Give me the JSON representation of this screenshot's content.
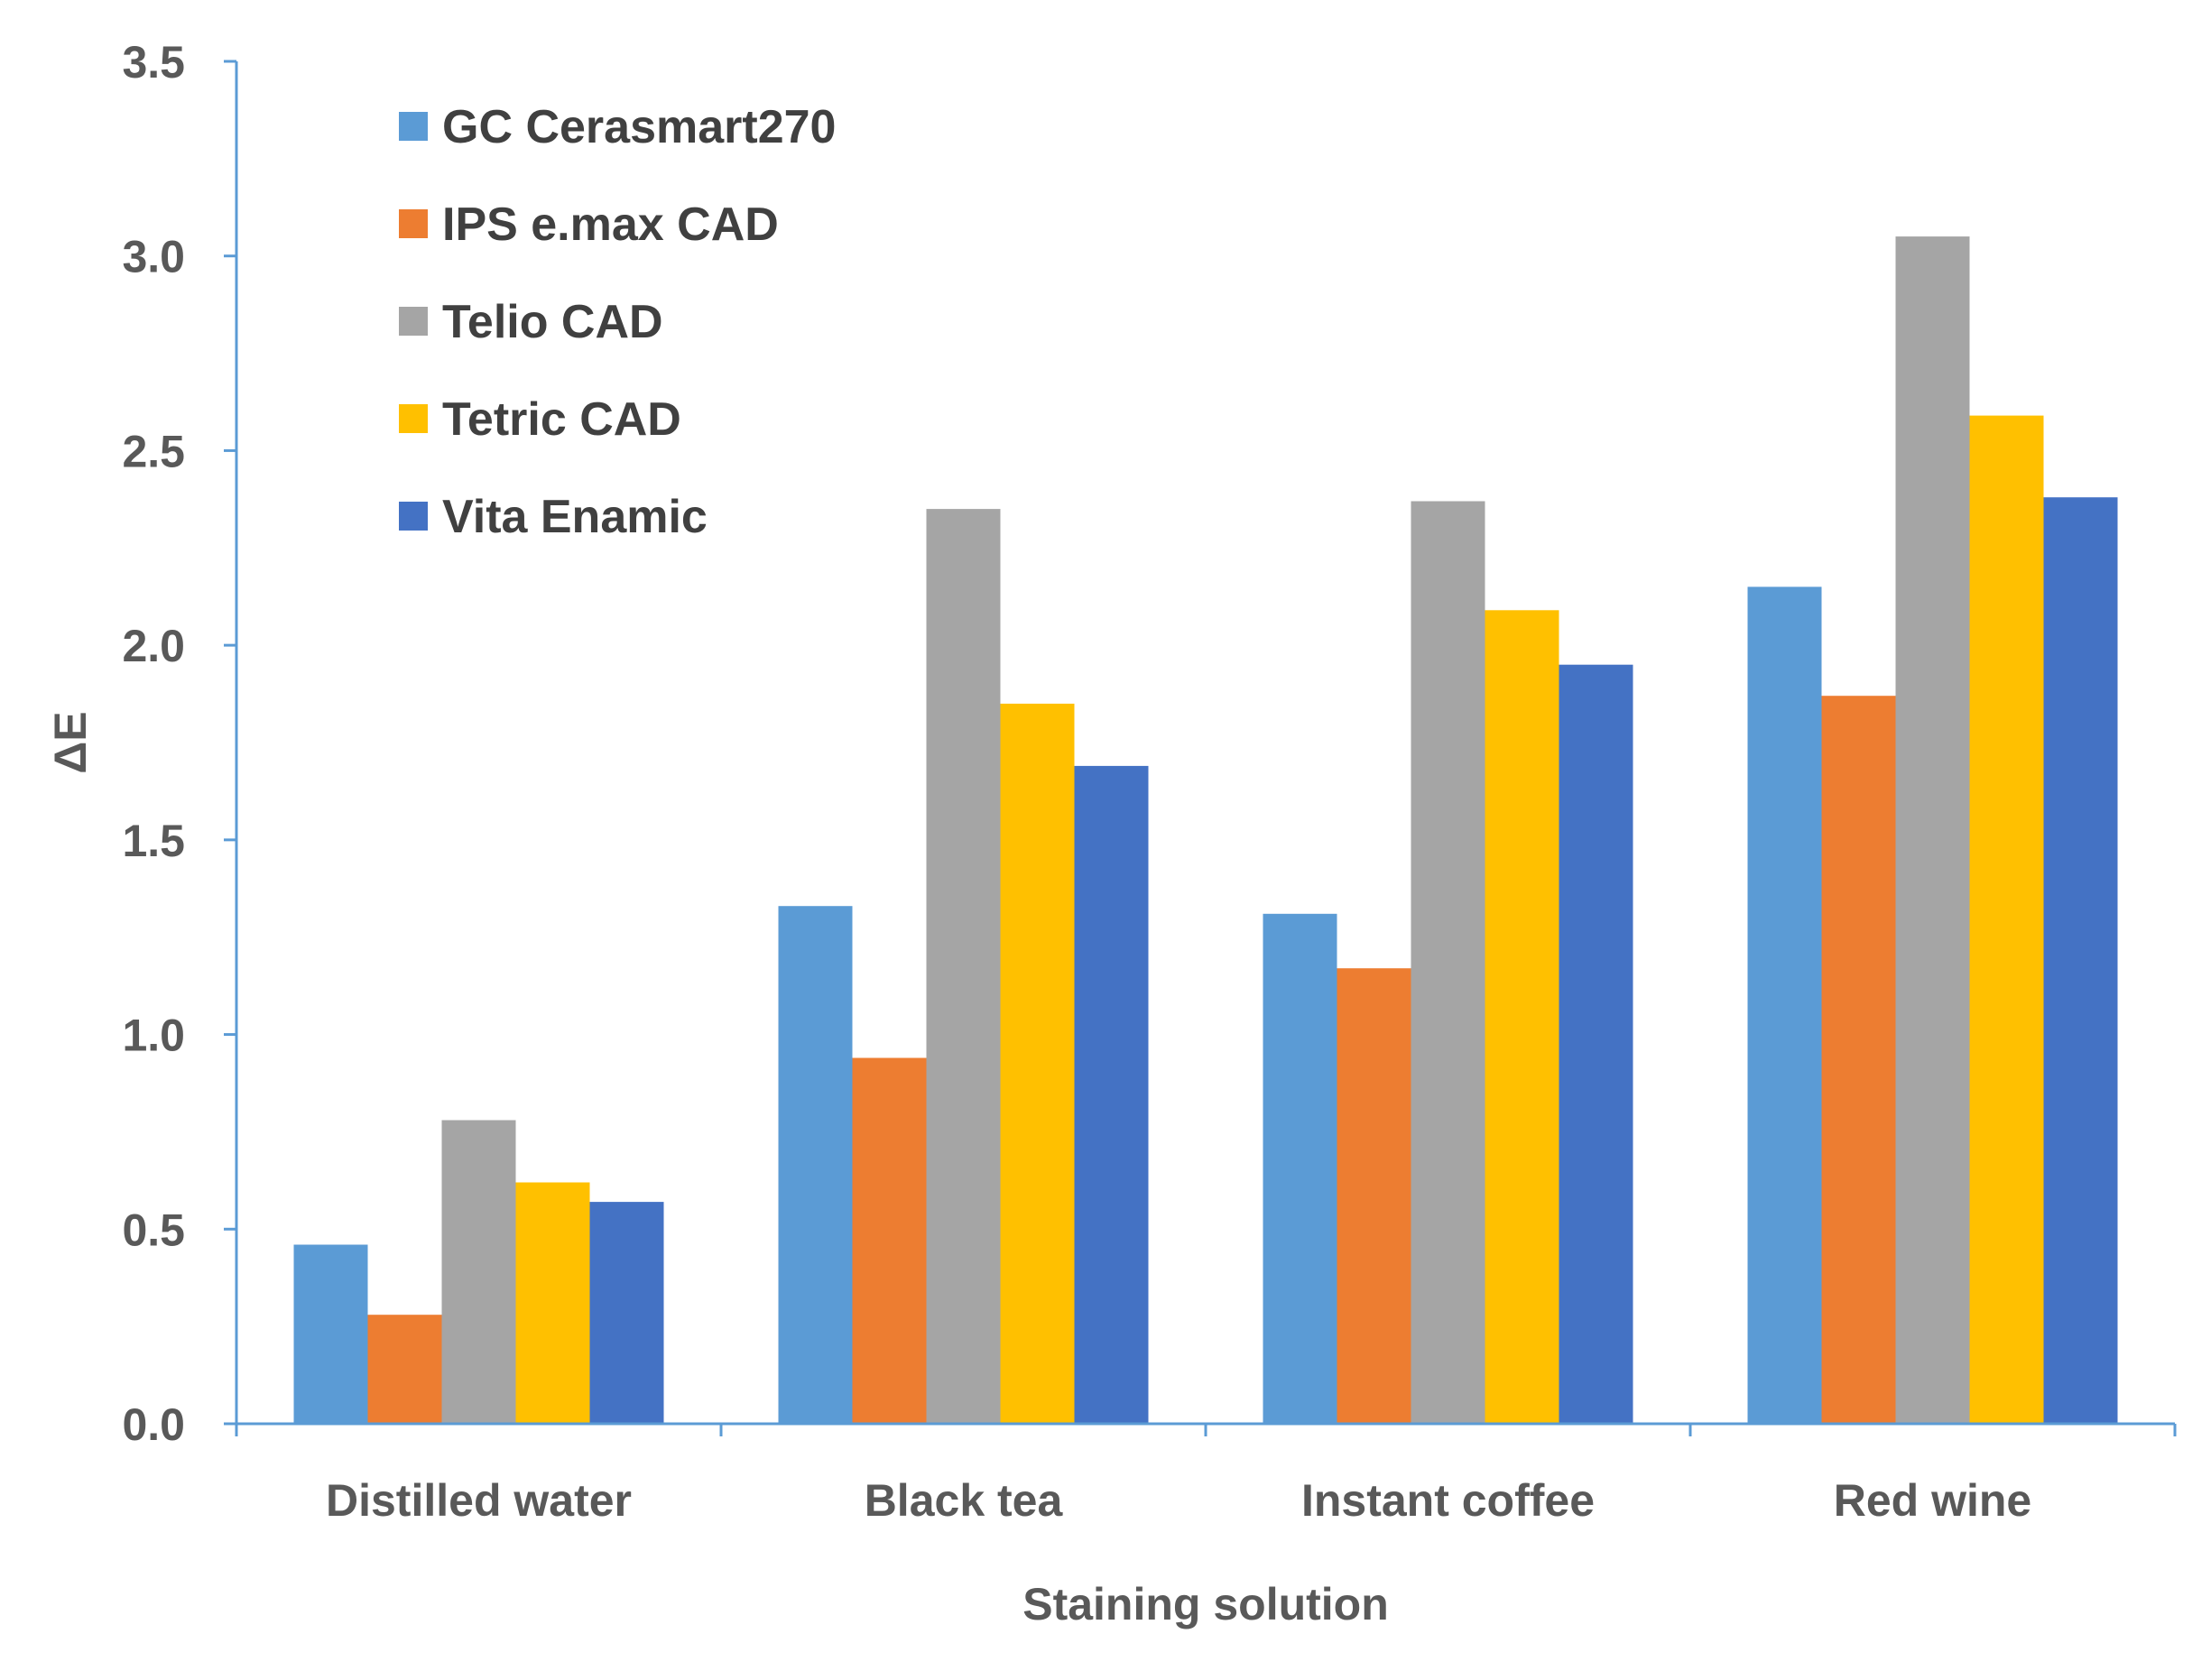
{
  "chart_data": {
    "type": "bar",
    "title": "",
    "xlabel": "Staining solution",
    "ylabel": "ΔE",
    "ylim": [
      0,
      3.5
    ],
    "yticks": [
      "0.0",
      "0.5",
      "1.0",
      "1.5",
      "2.0",
      "2.5",
      "3.0",
      "3.5"
    ],
    "grid": false,
    "legend_position": "top-left",
    "categories": [
      "Distilled water",
      "Black tea",
      "Instant coffee",
      "Red wine"
    ],
    "series": [
      {
        "name": "GC Cerasmart270",
        "color": "#5B9BD5",
        "values": [
          0.46,
          1.33,
          1.31,
          2.15
        ]
      },
      {
        "name": "IPS e.max CAD",
        "color": "#ED7D31",
        "values": [
          0.28,
          0.94,
          1.17,
          1.87
        ]
      },
      {
        "name": "Telio CAD",
        "color": "#A5A5A5",
        "values": [
          0.78,
          2.35,
          2.37,
          3.05
        ]
      },
      {
        "name": "Tetric CAD",
        "color": "#FFC000",
        "values": [
          0.62,
          1.85,
          2.09,
          2.59
        ]
      },
      {
        "name": "Vita Enamic",
        "color": "#4472C4",
        "values": [
          0.57,
          1.69,
          1.95,
          2.38
        ]
      }
    ],
    "axis_color": "#5B9BD5"
  }
}
